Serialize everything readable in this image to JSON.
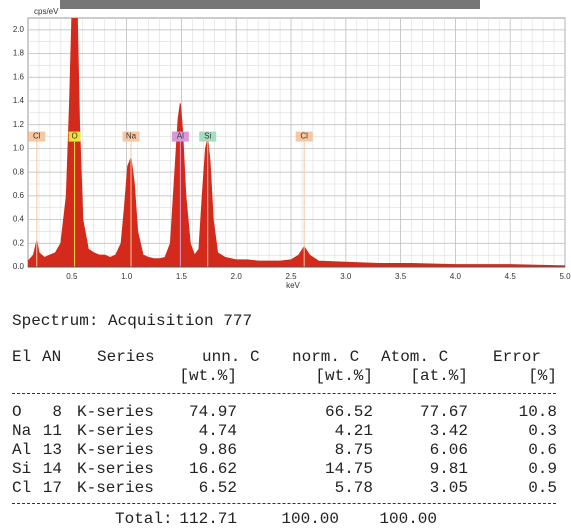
{
  "chart_data": {
    "type": "area",
    "y_label": "cps/eV",
    "x_label": "keV",
    "color": "#d42a1c",
    "grid": true,
    "xlim": [
      0.1,
      5.0
    ],
    "ylim": [
      0,
      2.1
    ],
    "xticks": [
      0.5,
      {
        "value": 1,
        "label": "1.0"
      },
      1.5,
      {
        "value": 2,
        "label": "2.0"
      },
      2.5,
      {
        "value": 3,
        "label": "3.0"
      },
      3.5,
      {
        "value": 4,
        "label": "4.0"
      },
      4.5,
      {
        "value": 5,
        "label": "5.0"
      }
    ],
    "yticks": [
      {
        "value": 0,
        "label": "0.0"
      },
      0.2,
      0.4,
      0.6,
      0.8,
      {
        "value": 1,
        "label": "1.0"
      },
      1.2,
      1.4,
      1.6,
      1.8,
      {
        "value": 2,
        "label": "2.0"
      }
    ],
    "x": [
      0.1,
      0.15,
      0.18,
      0.2,
      0.25,
      0.3,
      0.35,
      0.4,
      0.45,
      0.48,
      0.5,
      0.55,
      0.57,
      0.6,
      0.65,
      0.7,
      0.75,
      0.8,
      0.85,
      0.9,
      0.95,
      0.98,
      1.01,
      1.04,
      1.07,
      1.1,
      1.15,
      1.2,
      1.25,
      1.3,
      1.35,
      1.4,
      1.44,
      1.47,
      1.49,
      1.51,
      1.54,
      1.58,
      1.62,
      1.66,
      1.69,
      1.72,
      1.74,
      1.76,
      1.79,
      1.83,
      1.9,
      2.0,
      2.1,
      2.2,
      2.3,
      2.4,
      2.5,
      2.57,
      2.62,
      2.67,
      2.75,
      3.0,
      3.3,
      3.6,
      4.0,
      4.5,
      5.0
    ],
    "values": [
      0.05,
      0.1,
      0.22,
      0.12,
      0.08,
      0.1,
      0.12,
      0.2,
      0.6,
      1.4,
      2.1,
      2.1,
      1.2,
      0.4,
      0.15,
      0.12,
      0.1,
      0.1,
      0.08,
      0.1,
      0.2,
      0.5,
      0.85,
      0.92,
      0.7,
      0.3,
      0.1,
      0.08,
      0.07,
      0.07,
      0.08,
      0.2,
      0.8,
      1.25,
      1.38,
      1.15,
      0.6,
      0.2,
      0.1,
      0.15,
      0.6,
      1.0,
      1.08,
      0.9,
      0.4,
      0.12,
      0.08,
      0.06,
      0.06,
      0.05,
      0.05,
      0.05,
      0.06,
      0.1,
      0.17,
      0.1,
      0.05,
      0.04,
      0.03,
      0.03,
      0.02,
      0.02,
      0.01
    ],
    "markers": [
      {
        "label": "Cl",
        "x": 0.18,
        "color": "#f6c7a2"
      },
      {
        "label": "O",
        "x": 0.525,
        "color": "#f0e040"
      },
      {
        "label": "Na",
        "x": 1.04,
        "color": "#f6c7a2"
      },
      {
        "label": "Al",
        "x": 1.49,
        "color": "#d79ad6"
      },
      {
        "label": "Si",
        "x": 1.74,
        "color": "#a6dcbf"
      },
      {
        "label": "Cl",
        "x": 2.62,
        "color": "#f6c7a2"
      }
    ]
  },
  "table": {
    "title": "Spectrum: Acquisition 777",
    "headers": [
      "El",
      "AN",
      "Series",
      "unn. C",
      "norm. C",
      "Atom. C",
      "Error"
    ],
    "units": [
      "[wt.%]",
      "[wt.%]",
      "[at.%]",
      "[%]"
    ],
    "rows": [
      [
        "O",
        "8",
        "K-series",
        "74.97",
        "66.52",
        "77.67",
        "10.8"
      ],
      [
        "Na",
        "11",
        "K-series",
        "4.74",
        "4.21",
        "3.42",
        "0.3"
      ],
      [
        "Al",
        "13",
        "K-series",
        "9.86",
        "8.75",
        "6.06",
        "0.6"
      ],
      [
        "Si",
        "14",
        "K-series",
        "16.62",
        "14.75",
        "9.81",
        "0.9"
      ],
      [
        "Cl",
        "17",
        "K-series",
        "6.52",
        "5.78",
        "3.05",
        "0.5"
      ]
    ],
    "total": [
      "Total:",
      "112.71",
      "100.00",
      "100.00"
    ]
  }
}
